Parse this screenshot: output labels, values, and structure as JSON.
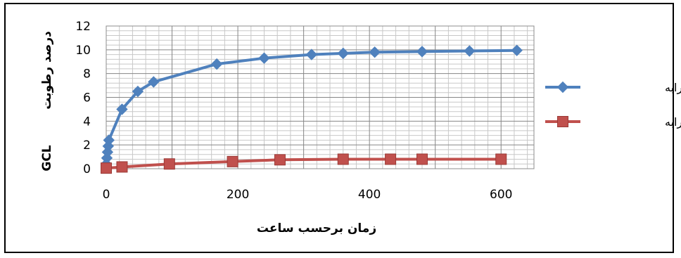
{
  "chart_data": {
    "type": "line",
    "xlabel": "زمان برحسب ساعت",
    "ylabel_main": "درصد رطوبت",
    "ylabel_sub": "GCL",
    "xlim": [
      0,
      650
    ],
    "ylim": [
      0,
      12
    ],
    "x_major_ticks": [
      0,
      200,
      400,
      600
    ],
    "y_major_ticks": [
      0,
      2,
      4,
      6,
      8,
      10,
      12
    ],
    "grid": true,
    "legend_position": "right",
    "series": [
      {
        "name": "عدم حضور شیرابه",
        "color": "#4f81bd",
        "marker": "diamond",
        "points": [
          [
            0,
            0.4
          ],
          [
            1,
            0.9
          ],
          [
            2,
            1.4
          ],
          [
            3,
            1.9
          ],
          [
            4,
            2.4
          ],
          [
            24,
            5.0
          ],
          [
            48,
            6.5
          ],
          [
            72,
            7.3
          ],
          [
            168,
            8.8
          ],
          [
            240,
            9.3
          ],
          [
            312,
            9.6
          ],
          [
            360,
            9.7
          ],
          [
            408,
            9.8
          ],
          [
            480,
            9.85
          ],
          [
            552,
            9.9
          ],
          [
            624,
            9.95
          ]
        ]
      },
      {
        "name": "در حضور شیرابه",
        "color": "#c0504d",
        "marker": "square",
        "points": [
          [
            0,
            0.05
          ],
          [
            24,
            0.15
          ],
          [
            96,
            0.4
          ],
          [
            192,
            0.6
          ],
          [
            264,
            0.75
          ],
          [
            360,
            0.8
          ],
          [
            432,
            0.8
          ],
          [
            480,
            0.8
          ],
          [
            600,
            0.8
          ]
        ]
      }
    ]
  }
}
